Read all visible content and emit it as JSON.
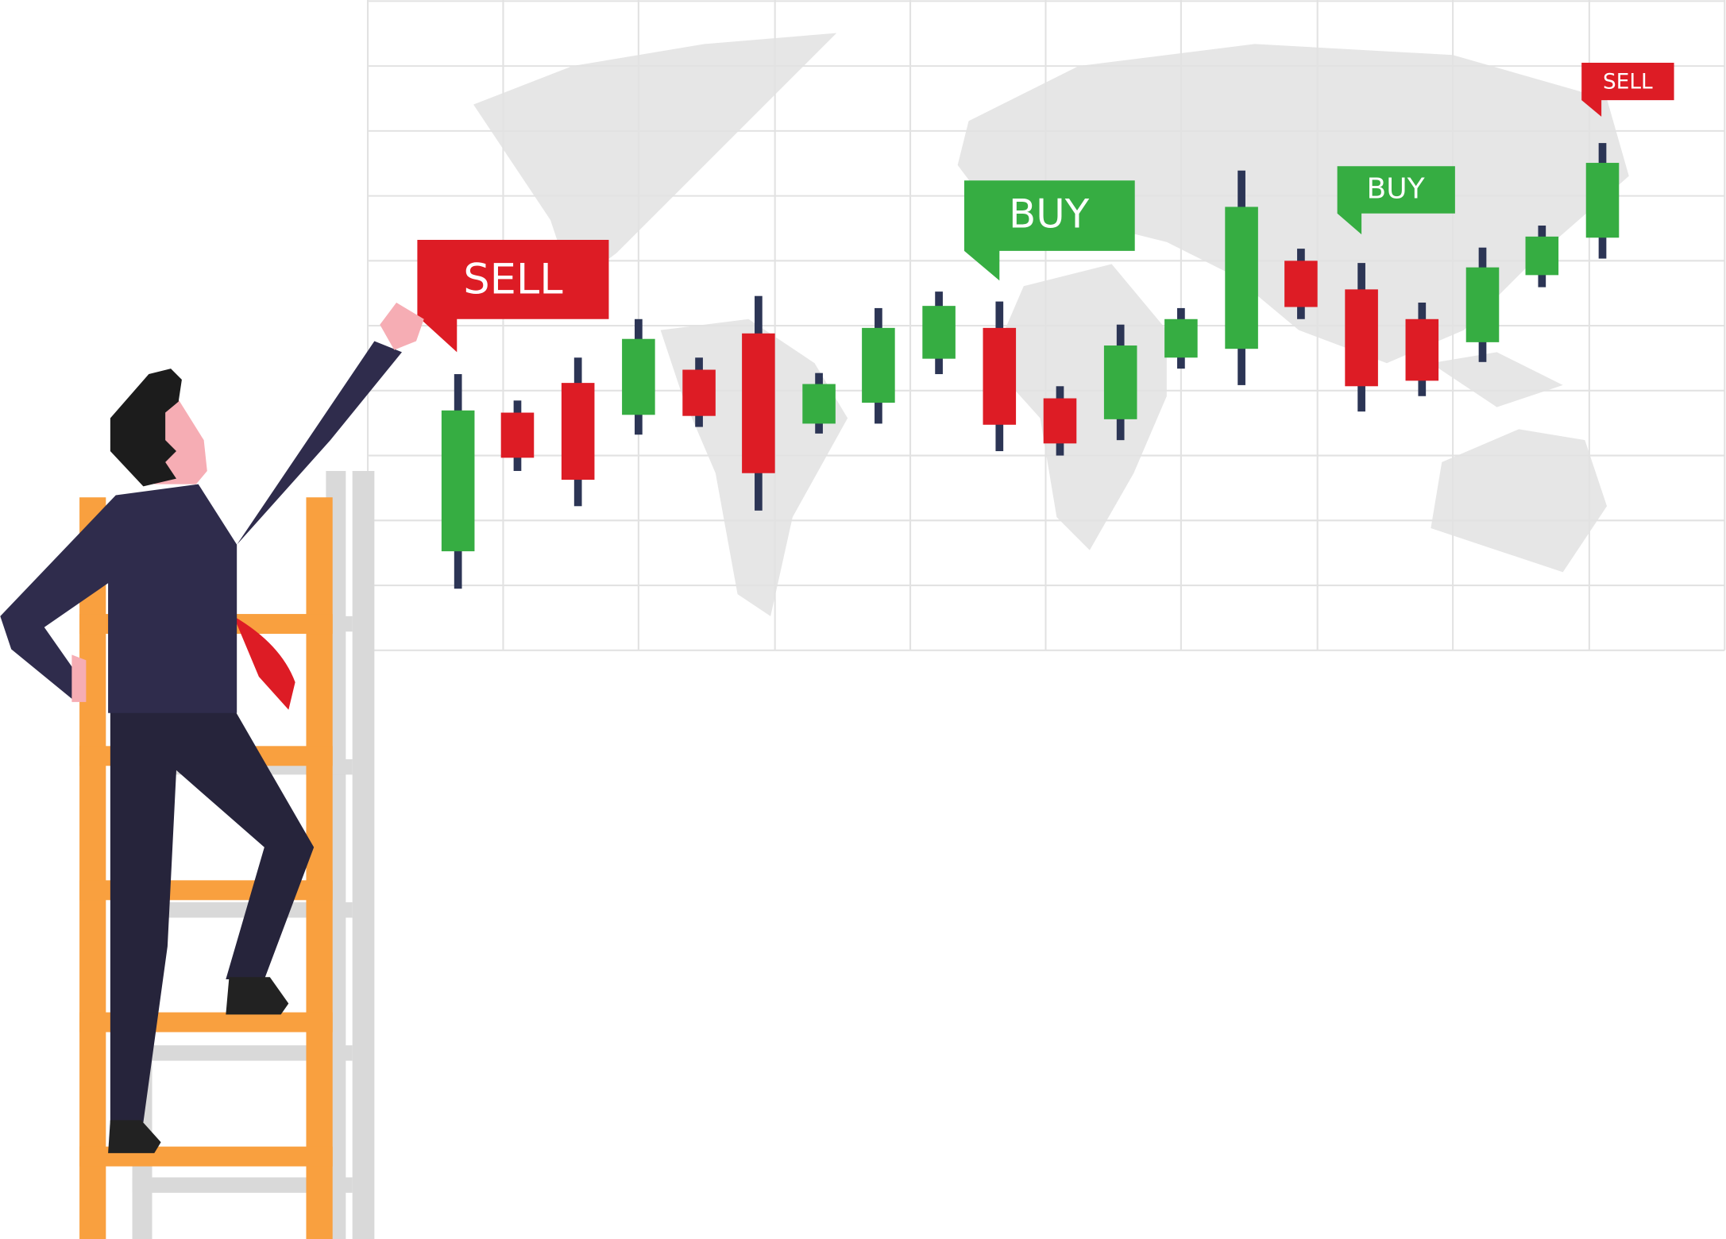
{
  "labels": [
    "SELL",
    "BUY",
    "BUY",
    "SELL"
  ]
}
